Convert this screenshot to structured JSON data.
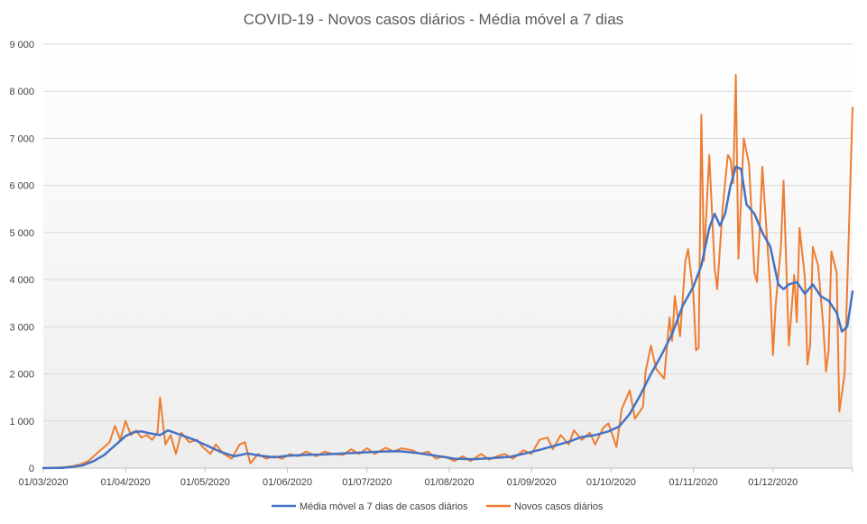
{
  "chart_data": {
    "type": "line",
    "title": "COVID-19 - Novos casos diários - Média móvel a 7 dias",
    "xlabel": "",
    "ylabel": "",
    "x_range": [
      "2020-03-01",
      "2020-12-31"
    ],
    "x_ticks": [
      "01/03/2020",
      "01/04/2020",
      "01/05/2020",
      "01/06/2020",
      "01/07/2020",
      "01/08/2020",
      "01/09/2020",
      "01/10/2020",
      "01/11/2020",
      "01/12/2020"
    ],
    "ylim": [
      0,
      9000
    ],
    "y_ticks": [
      0,
      1000,
      2000,
      3000,
      4000,
      5000,
      6000,
      7000,
      8000,
      9000
    ],
    "y_tick_labels": [
      "0",
      "1 000",
      "2 000",
      "3 000",
      "4 000",
      "5 000",
      "6 000",
      "7 000",
      "8 000",
      "9 000"
    ],
    "grid": true,
    "legend_position": "bottom",
    "series": [
      {
        "name": "Média móvel a 7 dias de casos diários",
        "color": "#4472C4",
        "points": [
          [
            "2020-03-01",
            0
          ],
          [
            "2020-03-08",
            5
          ],
          [
            "2020-03-12",
            25
          ],
          [
            "2020-03-16",
            60
          ],
          [
            "2020-03-20",
            150
          ],
          [
            "2020-03-24",
            280
          ],
          [
            "2020-03-28",
            480
          ],
          [
            "2020-04-01",
            680
          ],
          [
            "2020-04-04",
            760
          ],
          [
            "2020-04-07",
            780
          ],
          [
            "2020-04-10",
            740
          ],
          [
            "2020-04-14",
            700
          ],
          [
            "2020-04-17",
            800
          ],
          [
            "2020-04-22",
            700
          ],
          [
            "2020-04-27",
            600
          ],
          [
            "2020-05-02",
            470
          ],
          [
            "2020-05-07",
            340
          ],
          [
            "2020-05-12",
            250
          ],
          [
            "2020-05-17",
            310
          ],
          [
            "2020-05-22",
            260
          ],
          [
            "2020-05-27",
            230
          ],
          [
            "2020-06-01",
            260
          ],
          [
            "2020-06-08",
            280
          ],
          [
            "2020-06-15",
            290
          ],
          [
            "2020-06-22",
            310
          ],
          [
            "2020-06-29",
            330
          ],
          [
            "2020-07-06",
            350
          ],
          [
            "2020-07-13",
            360
          ],
          [
            "2020-07-20",
            320
          ],
          [
            "2020-07-27",
            260
          ],
          [
            "2020-08-03",
            200
          ],
          [
            "2020-08-10",
            190
          ],
          [
            "2020-08-17",
            210
          ],
          [
            "2020-08-24",
            240
          ],
          [
            "2020-08-31",
            330
          ],
          [
            "2020-09-05",
            400
          ],
          [
            "2020-09-10",
            480
          ],
          [
            "2020-09-15",
            560
          ],
          [
            "2020-09-20",
            660
          ],
          [
            "2020-09-25",
            700
          ],
          [
            "2020-09-30",
            780
          ],
          [
            "2020-10-04",
            880
          ],
          [
            "2020-10-08",
            1150
          ],
          [
            "2020-10-12",
            1550
          ],
          [
            "2020-10-16",
            2000
          ],
          [
            "2020-10-20",
            2400
          ],
          [
            "2020-10-24",
            2850
          ],
          [
            "2020-10-28",
            3450
          ],
          [
            "2020-11-01",
            3850
          ],
          [
            "2020-11-04",
            4300
          ],
          [
            "2020-11-07",
            5100
          ],
          [
            "2020-11-09",
            5400
          ],
          [
            "2020-11-11",
            5150
          ],
          [
            "2020-11-13",
            5400
          ],
          [
            "2020-11-15",
            6000
          ],
          [
            "2020-11-17",
            6400
          ],
          [
            "2020-11-19",
            6350
          ],
          [
            "2020-11-21",
            5600
          ],
          [
            "2020-11-24",
            5400
          ],
          [
            "2020-11-27",
            5000
          ],
          [
            "2020-11-30",
            4700
          ],
          [
            "2020-12-03",
            3900
          ],
          [
            "2020-12-05",
            3800
          ],
          [
            "2020-12-07",
            3900
          ],
          [
            "2020-12-10",
            3950
          ],
          [
            "2020-12-13",
            3700
          ],
          [
            "2020-12-16",
            3900
          ],
          [
            "2020-12-19",
            3650
          ],
          [
            "2020-12-22",
            3550
          ],
          [
            "2020-12-25",
            3300
          ],
          [
            "2020-12-27",
            2900
          ],
          [
            "2020-12-29",
            3000
          ],
          [
            "2020-12-31",
            3750
          ]
        ]
      },
      {
        "name": "Novos casos diários",
        "color": "#ED7D31",
        "points": [
          [
            "2020-03-01",
            0
          ],
          [
            "2020-03-05",
            5
          ],
          [
            "2020-03-09",
            20
          ],
          [
            "2020-03-12",
            40
          ],
          [
            "2020-03-15",
            80
          ],
          [
            "2020-03-18",
            150
          ],
          [
            "2020-03-21",
            300
          ],
          [
            "2020-03-24",
            450
          ],
          [
            "2020-03-26",
            550
          ],
          [
            "2020-03-28",
            900
          ],
          [
            "2020-03-30",
            600
          ],
          [
            "2020-04-01",
            1000
          ],
          [
            "2020-04-03",
            700
          ],
          [
            "2020-04-05",
            800
          ],
          [
            "2020-04-07",
            650
          ],
          [
            "2020-04-09",
            700
          ],
          [
            "2020-04-11",
            600
          ],
          [
            "2020-04-13",
            750
          ],
          [
            "2020-04-14",
            1500
          ],
          [
            "2020-04-16",
            500
          ],
          [
            "2020-04-18",
            700
          ],
          [
            "2020-04-20",
            300
          ],
          [
            "2020-04-22",
            750
          ],
          [
            "2020-04-25",
            550
          ],
          [
            "2020-04-28",
            600
          ],
          [
            "2020-04-30",
            450
          ],
          [
            "2020-05-03",
            300
          ],
          [
            "2020-05-05",
            500
          ],
          [
            "2020-05-08",
            300
          ],
          [
            "2020-05-11",
            200
          ],
          [
            "2020-05-14",
            500
          ],
          [
            "2020-05-16",
            550
          ],
          [
            "2020-05-18",
            100
          ],
          [
            "2020-05-21",
            300
          ],
          [
            "2020-05-24",
            200
          ],
          [
            "2020-05-27",
            250
          ],
          [
            "2020-05-30",
            200
          ],
          [
            "2020-06-02",
            300
          ],
          [
            "2020-06-05",
            250
          ],
          [
            "2020-06-08",
            350
          ],
          [
            "2020-06-12",
            250
          ],
          [
            "2020-06-15",
            350
          ],
          [
            "2020-06-18",
            300
          ],
          [
            "2020-06-22",
            280
          ],
          [
            "2020-06-25",
            400
          ],
          [
            "2020-06-28",
            300
          ],
          [
            "2020-07-01",
            420
          ],
          [
            "2020-07-04",
            300
          ],
          [
            "2020-07-08",
            430
          ],
          [
            "2020-07-11",
            350
          ],
          [
            "2020-07-14",
            420
          ],
          [
            "2020-07-18",
            380
          ],
          [
            "2020-07-21",
            300
          ],
          [
            "2020-07-24",
            350
          ],
          [
            "2020-07-27",
            200
          ],
          [
            "2020-07-30",
            250
          ],
          [
            "2020-08-03",
            150
          ],
          [
            "2020-08-06",
            250
          ],
          [
            "2020-08-09",
            150
          ],
          [
            "2020-08-13",
            300
          ],
          [
            "2020-08-16",
            180
          ],
          [
            "2020-08-19",
            250
          ],
          [
            "2020-08-22",
            300
          ],
          [
            "2020-08-25",
            200
          ],
          [
            "2020-08-29",
            380
          ],
          [
            "2020-09-01",
            300
          ],
          [
            "2020-09-04",
            600
          ],
          [
            "2020-09-07",
            650
          ],
          [
            "2020-09-09",
            400
          ],
          [
            "2020-09-12",
            700
          ],
          [
            "2020-09-15",
            500
          ],
          [
            "2020-09-17",
            800
          ],
          [
            "2020-09-20",
            600
          ],
          [
            "2020-09-23",
            750
          ],
          [
            "2020-09-25",
            500
          ],
          [
            "2020-09-28",
            850
          ],
          [
            "2020-09-30",
            950
          ],
          [
            "2020-10-03",
            450
          ],
          [
            "2020-10-05",
            1250
          ],
          [
            "2020-10-08",
            1650
          ],
          [
            "2020-10-10",
            1050
          ],
          [
            "2020-10-13",
            1300
          ],
          [
            "2020-10-14",
            2050
          ],
          [
            "2020-10-16",
            2600
          ],
          [
            "2020-10-18",
            2100
          ],
          [
            "2020-10-21",
            1900
          ],
          [
            "2020-10-23",
            3200
          ],
          [
            "2020-10-24",
            2700
          ],
          [
            "2020-10-25",
            3650
          ],
          [
            "2020-10-27",
            2800
          ],
          [
            "2020-10-29",
            4400
          ],
          [
            "2020-10-30",
            4650
          ],
          [
            "2020-11-01",
            3700
          ],
          [
            "2020-11-02",
            2500
          ],
          [
            "2020-11-03",
            2550
          ],
          [
            "2020-11-04",
            7500
          ],
          [
            "2020-11-05",
            4400
          ],
          [
            "2020-11-07",
            6650
          ],
          [
            "2020-11-09",
            4250
          ],
          [
            "2020-11-10",
            3800
          ],
          [
            "2020-11-12",
            5500
          ],
          [
            "2020-11-14",
            6650
          ],
          [
            "2020-11-15",
            6550
          ],
          [
            "2020-11-16",
            6050
          ],
          [
            "2020-11-17",
            8350
          ],
          [
            "2020-11-18",
            4450
          ],
          [
            "2020-11-20",
            7000
          ],
          [
            "2020-11-22",
            6450
          ],
          [
            "2020-11-24",
            4150
          ],
          [
            "2020-11-25",
            3950
          ],
          [
            "2020-11-26",
            5100
          ],
          [
            "2020-11-27",
            6400
          ],
          [
            "2020-11-30",
            3800
          ],
          [
            "2020-12-01",
            2400
          ],
          [
            "2020-12-02",
            3450
          ],
          [
            "2020-12-04",
            4700
          ],
          [
            "2020-12-05",
            6100
          ],
          [
            "2020-12-07",
            2600
          ],
          [
            "2020-12-09",
            4100
          ],
          [
            "2020-12-10",
            3100
          ],
          [
            "2020-12-11",
            5100
          ],
          [
            "2020-12-13",
            4050
          ],
          [
            "2020-12-14",
            2200
          ],
          [
            "2020-12-15",
            2600
          ],
          [
            "2020-12-16",
            4700
          ],
          [
            "2020-12-18",
            4300
          ],
          [
            "2020-12-20",
            3000
          ],
          [
            "2020-12-21",
            2050
          ],
          [
            "2020-12-22",
            2500
          ],
          [
            "2020-12-23",
            4600
          ],
          [
            "2020-12-25",
            4150
          ],
          [
            "2020-12-26",
            1200
          ],
          [
            "2020-12-28",
            2000
          ],
          [
            "2020-12-31",
            7650
          ]
        ]
      }
    ]
  }
}
